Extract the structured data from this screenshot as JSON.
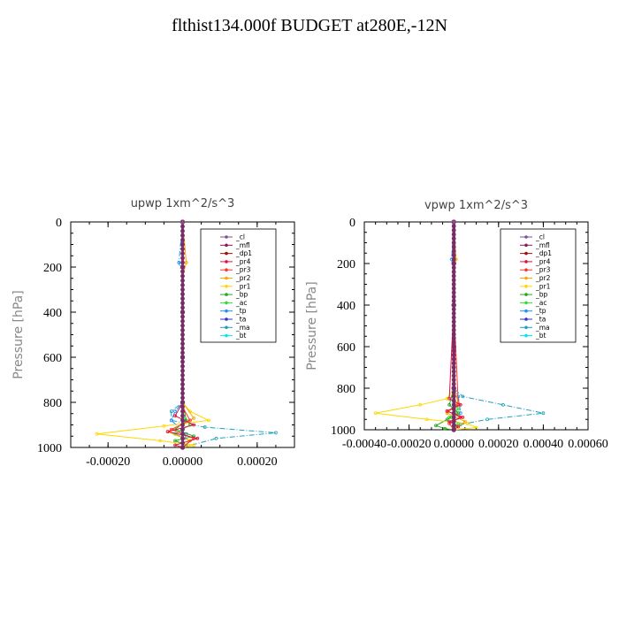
{
  "page_title": "flthist134.000f  BUDGET at280E,-12N",
  "chart_data": [
    {
      "type": "line",
      "title": "upwp   1xm^2/s^3",
      "ylabel": "Pressure [hPa]",
      "xlabel": "",
      "xlim": [
        -0.0003,
        0.0003
      ],
      "ylim": [
        1000,
        0
      ],
      "xticks": [
        -0.0002,
        0.0,
        0.0002
      ],
      "xtick_labels": [
        "-0.00020",
        "0.00000",
        "0.00020"
      ],
      "yticks": [
        0,
        200,
        400,
        600,
        800,
        1000
      ],
      "ytick_labels": [
        "0",
        "200",
        "400",
        "600",
        "800",
        "1000"
      ],
      "grid": false,
      "legend_position": "top-right",
      "series": [
        {
          "name": "_cl",
          "color": "#7f4f9f",
          "x": [
            0,
            0,
            0,
            0,
            0,
            0
          ],
          "y": [
            0,
            200,
            400,
            600,
            800,
            1000
          ]
        },
        {
          "name": "_mfl",
          "color": "#8b1a4f",
          "x": [
            0,
            0,
            0,
            0,
            0,
            0
          ],
          "y": [
            0,
            200,
            400,
            600,
            800,
            1000
          ]
        },
        {
          "name": "_dp1",
          "color": "#a01010",
          "x": [
            0,
            0,
            0,
            0,
            0,
            0
          ],
          "y": [
            0,
            200,
            400,
            600,
            800,
            1000
          ]
        },
        {
          "name": "_pr4",
          "color": "#dc143c",
          "x": [
            0,
            0,
            0,
            -2e-05,
            3e-05,
            -4e-05,
            4e-05,
            -2e-05,
            0
          ],
          "y": [
            0,
            400,
            800,
            860,
            900,
            930,
            960,
            990,
            1000
          ]
        },
        {
          "name": "_pr3",
          "color": "#ff3333",
          "x": [
            0,
            0,
            0,
            2e-05,
            -3e-05,
            3e-05,
            0
          ],
          "y": [
            0,
            400,
            820,
            880,
            920,
            960,
            1000
          ]
        },
        {
          "name": "_pr2",
          "color": "#ffa500",
          "x": [
            0,
            1e-05,
            0,
            0,
            3e-05,
            -4e-05,
            2e-05,
            0
          ],
          "y": [
            0,
            180,
            240,
            800,
            870,
            930,
            970,
            1000
          ]
        },
        {
          "name": "_pr1",
          "color": "#ffd700",
          "x": [
            0,
            0,
            2e-05,
            7e-05,
            -5e-05,
            -0.00023,
            -6e-05,
            3e-05,
            0
          ],
          "y": [
            0,
            800,
            840,
            880,
            905,
            940,
            970,
            990,
            1000
          ]
        },
        {
          "name": "_bp",
          "color": "#22aa22",
          "x": [
            0,
            0,
            1e-05,
            -2e-05,
            3e-05,
            -2e-05,
            1e-05,
            0
          ],
          "y": [
            0,
            800,
            880,
            920,
            950,
            970,
            990,
            1000
          ]
        },
        {
          "name": "_ac",
          "color": "#33dd33",
          "x": [
            0,
            0,
            2e-05,
            -2e-05,
            2e-05,
            0
          ],
          "y": [
            0,
            860,
            900,
            940,
            970,
            1000
          ]
        },
        {
          "name": "_tp",
          "color": "#1e90ff",
          "x": [
            0,
            -1e-05,
            0,
            0,
            -2e-05,
            -3e-05,
            1e-05,
            0
          ],
          "y": [
            0,
            180,
            240,
            800,
            840,
            880,
            940,
            1000
          ]
        },
        {
          "name": "_ta",
          "color": "#3333cc",
          "x": [
            0,
            0,
            0,
            0
          ],
          "y": [
            0,
            400,
            800,
            1000
          ]
        },
        {
          "name": "_ma",
          "color": "#20a0c0",
          "x": [
            0,
            0,
            -3e-05,
            -3e-05,
            6e-05,
            0.00025,
            9e-05,
            0
          ],
          "y": [
            0,
            800,
            840,
            880,
            910,
            935,
            960,
            1000
          ]
        },
        {
          "name": "_bt",
          "color": "#00e5ee",
          "x": [
            0,
            0,
            0,
            0
          ],
          "y": [
            0,
            400,
            800,
            1000
          ]
        }
      ]
    },
    {
      "type": "line",
      "title": "vpwp   1xm^2/s^3",
      "ylabel": "Pressure [hPa]",
      "xlabel": "",
      "xlim": [
        -0.0004,
        0.0006
      ],
      "ylim": [
        1000,
        0
      ],
      "xticks": [
        -0.0004,
        -0.0002,
        0.0,
        0.0002,
        0.0004,
        0.0006
      ],
      "xtick_labels": [
        "-0.00040",
        "-0.00020",
        "0.00000",
        "0.00020",
        "0.00040",
        "0.00060"
      ],
      "yticks": [
        0,
        200,
        400,
        600,
        800,
        1000
      ],
      "ytick_labels": [
        "0",
        "200",
        "400",
        "600",
        "800",
        "1000"
      ],
      "grid": false,
      "legend_position": "top-right",
      "series": [
        {
          "name": "_cl",
          "color": "#7f4f9f",
          "x": [
            0,
            0,
            0,
            0,
            0,
            0
          ],
          "y": [
            0,
            200,
            400,
            600,
            800,
            1000
          ]
        },
        {
          "name": "_mfl",
          "color": "#8b1a4f",
          "x": [
            0,
            0,
            0,
            0,
            0,
            0
          ],
          "y": [
            0,
            200,
            400,
            600,
            800,
            1000
          ]
        },
        {
          "name": "_dp1",
          "color": "#a01010",
          "x": [
            0,
            0,
            0,
            0,
            0,
            0
          ],
          "y": [
            0,
            200,
            400,
            600,
            800,
            1000
          ]
        },
        {
          "name": "_pr4",
          "color": "#dc143c",
          "x": [
            0,
            0,
            -2e-05,
            3e-05,
            -3e-05,
            4e-05,
            -2e-05,
            2e-05,
            0
          ],
          "y": [
            0,
            400,
            850,
            880,
            910,
            940,
            960,
            985,
            1000
          ]
        },
        {
          "name": "_pr3",
          "color": "#ff3333",
          "x": [
            0,
            0,
            2e-05,
            -3e-05,
            3e-05,
            -2e-05,
            0
          ],
          "y": [
            0,
            400,
            880,
            910,
            940,
            970,
            1000
          ]
        },
        {
          "name": "_pr2",
          "color": "#ffa500",
          "x": [
            0,
            1e-05,
            0,
            0,
            2e-05,
            -3e-05,
            5e-05,
            2e-05,
            0
          ],
          "y": [
            0,
            180,
            240,
            800,
            870,
            920,
            960,
            985,
            1000
          ]
        },
        {
          "name": "_pr1",
          "color": "#ffd700",
          "x": [
            0,
            0,
            -3e-05,
            -0.00015,
            -0.00035,
            -0.00012,
            6e-05,
            0.0001,
            0
          ],
          "y": [
            0,
            800,
            850,
            880,
            920,
            950,
            970,
            990,
            1000
          ]
        },
        {
          "name": "_bp",
          "color": "#22aa22",
          "x": [
            0,
            0,
            -2e-05,
            2e-05,
            -3e-05,
            -8e-05,
            -4e-05,
            0
          ],
          "y": [
            0,
            800,
            880,
            920,
            950,
            980,
            995,
            1000
          ]
        },
        {
          "name": "_ac",
          "color": "#33dd33",
          "x": [
            0,
            0,
            2e-05,
            -2e-05,
            2e-05,
            0
          ],
          "y": [
            0,
            860,
            900,
            940,
            970,
            1000
          ]
        },
        {
          "name": "_tp",
          "color": "#1e90ff",
          "x": [
            0,
            -1e-05,
            0,
            0,
            2e-05,
            3e-05,
            0
          ],
          "y": [
            0,
            180,
            240,
            800,
            840,
            920,
            1000
          ]
        },
        {
          "name": "_ta",
          "color": "#3333cc",
          "x": [
            0,
            0,
            0,
            0
          ],
          "y": [
            0,
            400,
            800,
            1000
          ]
        },
        {
          "name": "_ma",
          "color": "#20a0c0",
          "x": [
            0,
            0,
            4e-05,
            0.00022,
            0.0004,
            0.00015,
            3e-05,
            0
          ],
          "y": [
            0,
            800,
            840,
            880,
            920,
            950,
            975,
            1000
          ]
        },
        {
          "name": "_bt",
          "color": "#00e5ee",
          "x": [
            0,
            0,
            0,
            0
          ],
          "y": [
            0,
            400,
            800,
            1000
          ]
        }
      ]
    }
  ]
}
